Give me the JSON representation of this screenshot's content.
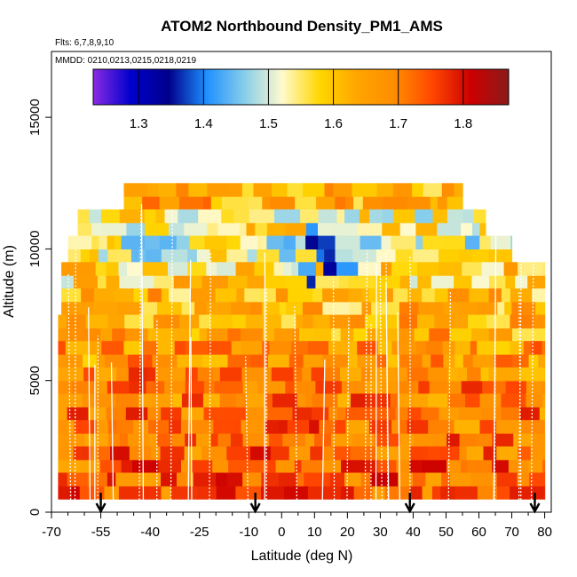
{
  "chart_data": {
    "type": "heatmap",
    "title": "ATOM2 Northbound Density_PM1_AMS",
    "subtitle_flights": "Flts: 6,7,8,9,10",
    "subtitle_dates": "MMDD: 0210,0213,0215,0218,0219",
    "xlabel": "Latitude (deg N)",
    "ylabel": "Altitude (m)",
    "xlim": [
      -70,
      82
    ],
    "ylim": [
      0,
      17500
    ],
    "x_ticks": [
      {
        "value": -70,
        "label": "-70"
      },
      {
        "value": -55,
        "label": "-55"
      },
      {
        "value": -40,
        "label": "-40"
      },
      {
        "value": -25,
        "label": "-25"
      },
      {
        "value": -10,
        "label": "-10"
      },
      {
        "value": 0,
        "label": "0"
      },
      {
        "value": 10,
        "label": "10"
      },
      {
        "value": 20,
        "label": "20"
      },
      {
        "value": 30,
        "label": "30"
      },
      {
        "value": 40,
        "label": "40"
      },
      {
        "value": 50,
        "label": "50"
      },
      {
        "value": 60,
        "label": "60"
      },
      {
        "value": 70,
        "label": "70"
      },
      {
        "value": 80,
        "label": "80"
      }
    ],
    "y_ticks": [
      {
        "value": 0,
        "label": "0"
      },
      {
        "value": 5000,
        "label": "5000"
      },
      {
        "value": 10000,
        "label": "10000"
      },
      {
        "value": 15000,
        "label": "15000"
      }
    ],
    "colorbar": {
      "min": 1.23,
      "max": 1.87,
      "ticks": [
        {
          "value": 1.3,
          "label": "1.3"
        },
        {
          "value": 1.4,
          "label": "1.4"
        },
        {
          "value": 1.5,
          "label": "1.5"
        },
        {
          "value": 1.6,
          "label": "1.6"
        },
        {
          "value": 1.7,
          "label": "1.7"
        },
        {
          "value": 1.8,
          "label": "1.8"
        }
      ],
      "colors": [
        "#8a2be2",
        "#0000cd",
        "#00008b",
        "#1e90ff",
        "#87ceeb",
        "#fffacd",
        "#ffd700",
        "#ffa500",
        "#ff8c00",
        "#ff4500",
        "#cc0000",
        "#8b1a1a"
      ]
    },
    "flight_profile_markers_latitude": [
      -55,
      -8,
      39,
      77
    ],
    "altitude_bands_m": [
      {
        "alt": 12000,
        "lat_min": -48,
        "lat_max": 55,
        "mean": 1.64
      },
      {
        "alt": 11000,
        "lat_min": -62,
        "lat_max": 62,
        "mean": 1.55
      },
      {
        "alt": 10000,
        "lat_min": -65,
        "lat_max": 70,
        "mean": 1.52
      },
      {
        "alt": 9000,
        "lat_min": -67,
        "lat_max": 80,
        "mean": 1.58
      },
      {
        "alt": 8000,
        "lat_min": -67,
        "lat_max": 80,
        "mean": 1.62
      },
      {
        "alt": 7000,
        "lat_min": -68,
        "lat_max": 80,
        "mean": 1.64
      },
      {
        "alt": 6000,
        "lat_min": -68,
        "lat_max": 80,
        "mean": 1.67
      },
      {
        "alt": 5000,
        "lat_min": -68,
        "lat_max": 80,
        "mean": 1.69
      },
      {
        "alt": 4000,
        "lat_min": -68,
        "lat_max": 80,
        "mean": 1.7
      },
      {
        "alt": 3000,
        "lat_min": -68,
        "lat_max": 80,
        "mean": 1.71
      },
      {
        "alt": 2000,
        "lat_min": -68,
        "lat_max": 80,
        "mean": 1.72
      },
      {
        "alt": 1000,
        "lat_min": -68,
        "lat_max": 80,
        "mean": 1.73
      }
    ]
  }
}
